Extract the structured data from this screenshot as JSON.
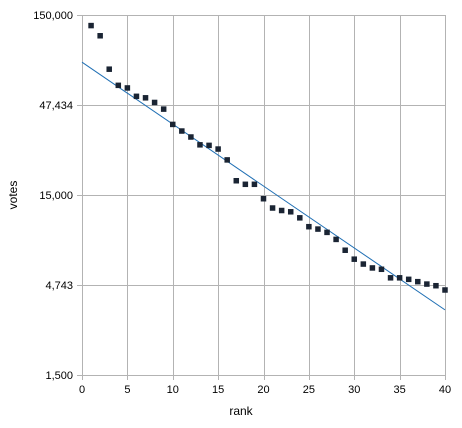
{
  "chart_data": {
    "type": "scatter",
    "xlabel": "rank",
    "ylabel": "votes",
    "y_scale": "log",
    "xlim": [
      0,
      40
    ],
    "ylim": [
      1500,
      150000
    ],
    "x_ticks": [
      0,
      5,
      10,
      15,
      20,
      25,
      30,
      35,
      40
    ],
    "x_tick_labels": [
      "0",
      "5",
      "10",
      "15",
      "20",
      "25",
      "30",
      "35",
      "40"
    ],
    "y_ticks": [
      1500,
      4743,
      15000,
      47434,
      150000
    ],
    "y_tick_labels": [
      "1,500",
      "4,743",
      "15,000",
      "47,434",
      "150,000"
    ],
    "grid": true,
    "legend": "none",
    "colors": {
      "points": "#1a2433",
      "trendline": "#1f6fb4",
      "grid": "#b3b3b3",
      "axis": "#b3b3b3"
    },
    "series": [
      {
        "x": [
          1,
          2,
          3,
          4,
          5,
          6,
          7,
          8,
          9,
          10,
          11,
          12,
          13,
          14,
          15,
          16,
          17,
          18,
          19,
          20,
          21,
          22,
          23,
          24,
          25,
          26,
          27,
          28,
          29,
          30,
          31,
          32,
          33,
          34,
          35,
          36,
          37,
          38,
          39,
          40
        ],
        "values": [
          131000,
          115000,
          75000,
          61000,
          59000,
          53000,
          52000,
          49000,
          45000,
          37000,
          34000,
          31500,
          28500,
          28300,
          27000,
          23500,
          18000,
          17200,
          17200,
          14300,
          12700,
          12300,
          12100,
          11200,
          10000,
          9700,
          9300,
          8500,
          7400,
          6600,
          6200,
          5900,
          5800,
          5200,
          5200,
          5100,
          4950,
          4800,
          4700,
          4450
        ]
      }
    ],
    "trendline": {
      "type": "exponential",
      "x": [
        0,
        40
      ],
      "values": [
        82000,
        3450
      ]
    }
  }
}
